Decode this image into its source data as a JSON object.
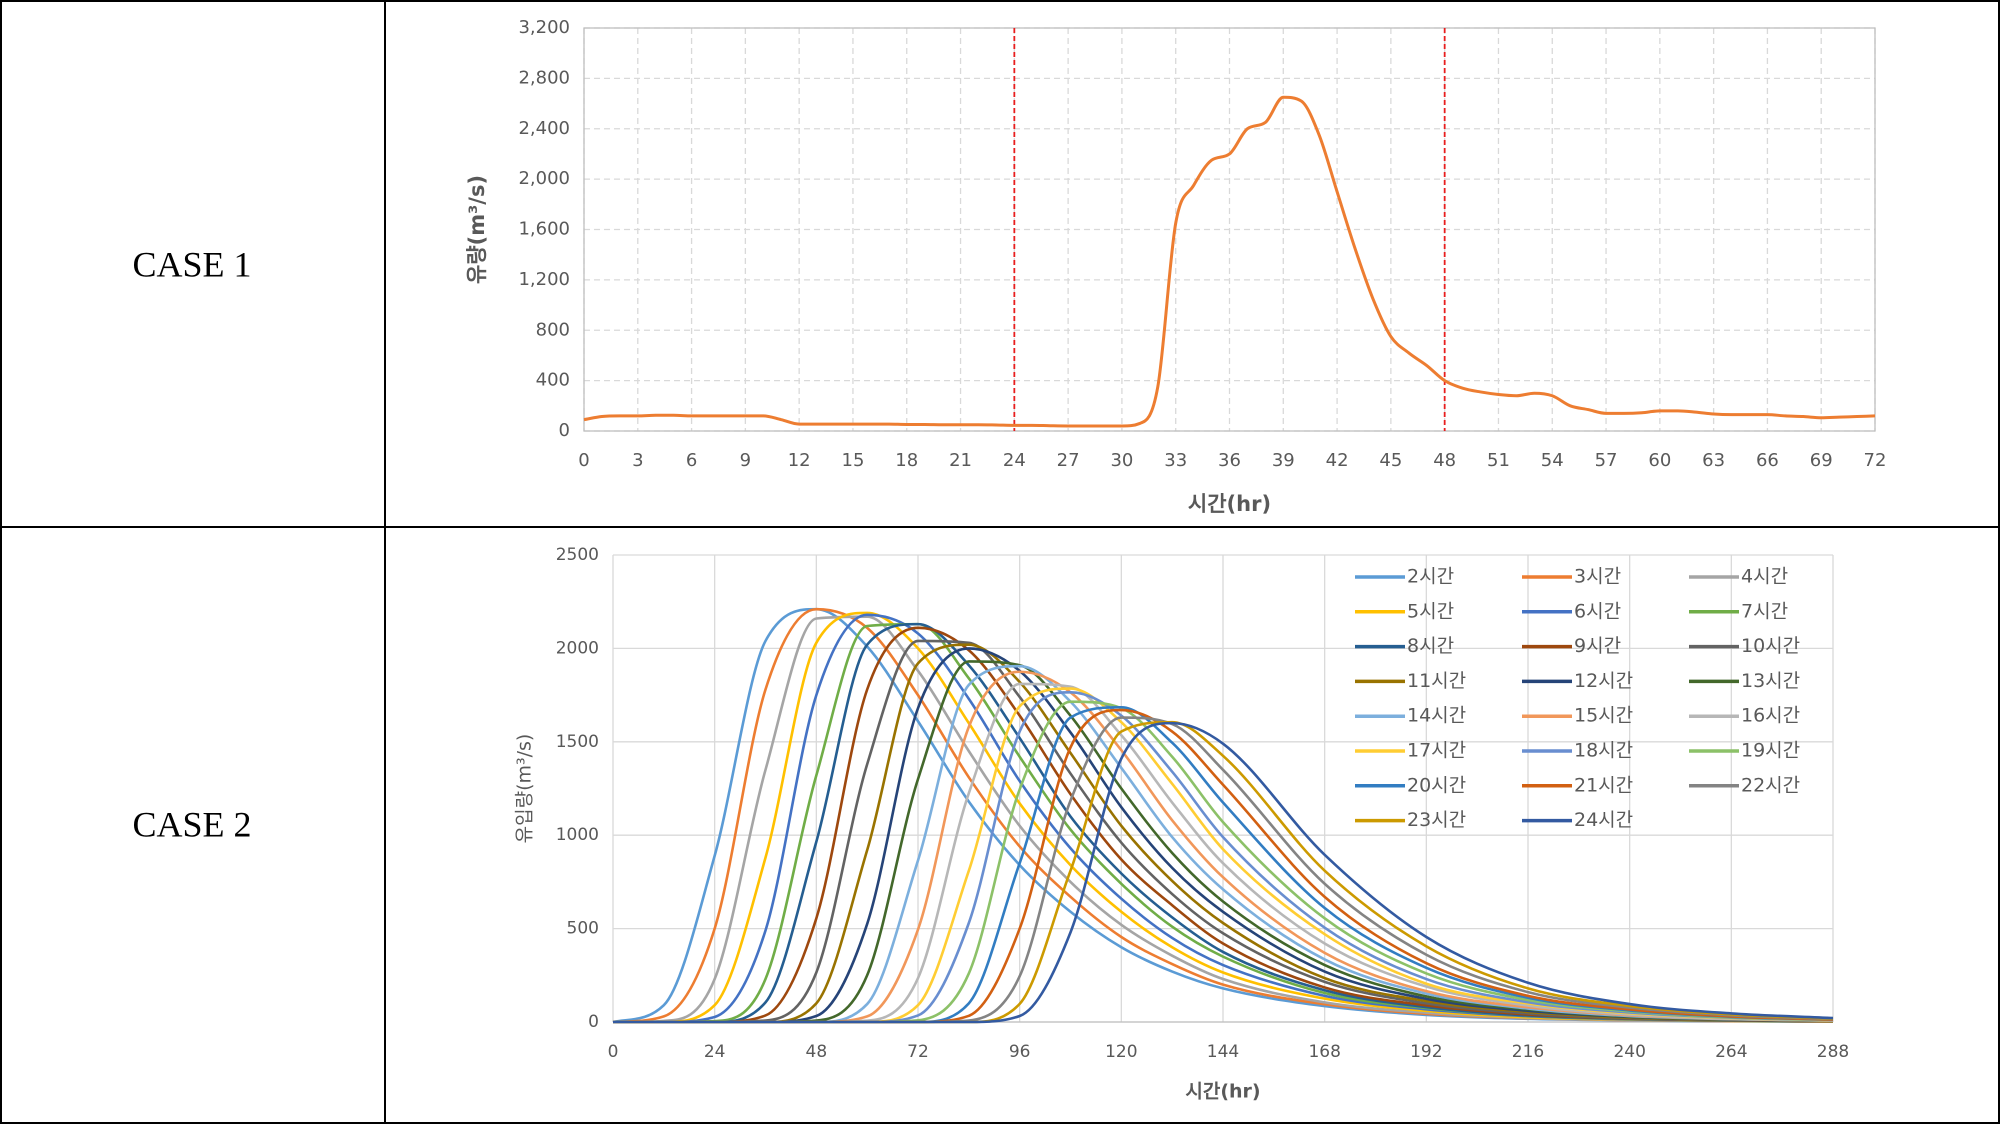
{
  "table": {
    "rows": [
      [
        "CASE 1"
      ],
      [
        "CASE 2"
      ]
    ]
  },
  "chart_data": [
    {
      "type": "line",
      "xlabel": "시간(hr)",
      "ylabel": "유량(m³/s)",
      "color": "#ed7d31",
      "grid": "dashed",
      "vlines": [
        24,
        48
      ],
      "vline_color": "#e81e1e",
      "x": [
        0,
        1,
        2,
        3,
        4,
        5,
        6,
        7,
        8,
        9,
        10,
        11,
        12,
        13,
        14,
        15,
        16,
        17,
        18,
        19,
        20,
        21,
        22,
        23,
        24,
        25,
        26,
        27,
        28,
        29,
        30,
        31,
        32,
        33,
        34,
        35,
        36,
        37,
        38,
        39,
        40,
        41,
        42,
        43,
        44,
        45,
        46,
        47,
        48,
        49,
        50,
        51,
        52,
        53,
        54,
        55,
        56,
        57,
        58,
        59,
        60,
        61,
        62,
        63,
        64,
        65,
        66,
        67,
        68,
        69,
        70,
        71,
        72
      ],
      "values": [
        90,
        115,
        120,
        120,
        125,
        125,
        120,
        120,
        120,
        120,
        120,
        90,
        55,
        55,
        55,
        55,
        55,
        55,
        52,
        52,
        50,
        50,
        50,
        48,
        45,
        45,
        42,
        40,
        40,
        40,
        40,
        60,
        350,
        1650,
        1950,
        2150,
        2200,
        2400,
        2450,
        2650,
        2620,
        2350,
        1900,
        1450,
        1050,
        750,
        620,
        520,
        400,
        340,
        310,
        290,
        280,
        300,
        280,
        200,
        170,
        140,
        140,
        145,
        160,
        160,
        150,
        135,
        130,
        130,
        130,
        120,
        115,
        105,
        110,
        115,
        120
      ],
      "xlim": [
        0,
        72
      ],
      "xticks": [
        0,
        3,
        6,
        9,
        12,
        15,
        18,
        21,
        24,
        27,
        30,
        33,
        36,
        39,
        42,
        45,
        48,
        51,
        54,
        57,
        60,
        63,
        66,
        69,
        72
      ],
      "ylim": [
        0,
        3200
      ],
      "yticks": [
        0,
        400,
        800,
        {
          "value": 1200,
          "label": "1,200"
        },
        {
          "value": 1600,
          "label": "1,600"
        },
        {
          "value": 2000,
          "label": "2,000"
        },
        {
          "value": 2400,
          "label": "2,400"
        },
        {
          "value": 2800,
          "label": "2,800"
        },
        {
          "value": 3200,
          "label": "3,200"
        }
      ]
    },
    {
      "type": "line",
      "xlabel": "시간(hr)",
      "ylabel": "유입량(m³/s)",
      "grid": "solid",
      "legend": "upper-right",
      "x": [
        0,
        12,
        24,
        36,
        48,
        60,
        72,
        84,
        96,
        108,
        120,
        132,
        144,
        168,
        192,
        216,
        240,
        264,
        288
      ],
      "xlim": [
        0,
        288
      ],
      "xticks": [
        0,
        24,
        48,
        72,
        96,
        120,
        144,
        168,
        192,
        216,
        240,
        264,
        288
      ],
      "ylim": [
        0,
        2500
      ],
      "yticks": [
        0,
        500,
        1000,
        1500,
        2000,
        2500
      ],
      "series": [
        {
          "name": "2시간",
          "color": "#5b9bd5",
          "values": [
            0,
            90,
            890,
            2040,
            2210,
            2010,
            1610,
            1180,
            840,
            590,
            400,
            270,
            180,
            85,
            38,
            17,
            9,
            4,
            2
          ]
        },
        {
          "name": "3시간",
          "color": "#ed7d31",
          "values": [
            0,
            30,
            500,
            1780,
            2210,
            2110,
            1750,
            1310,
            940,
            670,
            455,
            310,
            200,
            95,
            44,
            20,
            10,
            5,
            2
          ]
        },
        {
          "name": "4시간",
          "color": "#a5a5a5",
          "values": [
            0,
            6,
            230,
            1350,
            2160,
            2170,
            1880,
            1450,
            1050,
            750,
            520,
            355,
            230,
            105,
            50,
            22,
            11,
            6,
            3
          ]
        },
        {
          "name": "5시간",
          "color": "#ffc000",
          "values": [
            0,
            0,
            90,
            880,
            2030,
            2190,
            2000,
            1600,
            1170,
            840,
            590,
            400,
            265,
            125,
            60,
            25,
            13,
            6,
            3
          ]
        },
        {
          "name": "6시간",
          "color": "#4472c4",
          "values": [
            0,
            0,
            27,
            490,
            1750,
            2180,
            2080,
            1730,
            1290,
            930,
            660,
            450,
            305,
            140,
            68,
            31,
            14,
            7,
            4
          ]
        },
        {
          "name": "7시간",
          "color": "#70ad47",
          "values": [
            0,
            0,
            5,
            230,
            1320,
            2120,
            2130,
            1840,
            1420,
            1030,
            740,
            510,
            350,
            155,
            75,
            34,
            16,
            7,
            4
          ]
        },
        {
          "name": "8시간",
          "color": "#255e91",
          "values": [
            0,
            0,
            0,
            105,
            965,
            2020,
            2130,
            1910,
            1520,
            1100,
            795,
            560,
            375,
            170,
            80,
            35,
            17,
            8,
            4
          ]
        },
        {
          "name": "9시간",
          "color": "#9e480e",
          "values": [
            0,
            0,
            0,
            35,
            555,
            1780,
            2110,
            1990,
            1640,
            1220,
            870,
            625,
            420,
            185,
            89,
            40,
            18,
            9,
            5
          ]
        },
        {
          "name": "10시간",
          "color": "#636363",
          "values": [
            0,
            0,
            0,
            8,
            265,
            1380,
            2040,
            2030,
            1740,
            1330,
            960,
            685,
            475,
            215,
            100,
            46,
            19,
            10,
            5
          ]
        },
        {
          "name": "11시간",
          "color": "#997300",
          "values": [
            0,
            0,
            0,
            0,
            100,
            920,
            1920,
            2020,
            1820,
            1440,
            1050,
            755,
            530,
            235,
            112,
            54,
            23,
            12,
            6
          ]
        },
        {
          "name": "12시간",
          "color": "#264478",
          "values": [
            0,
            0,
            0,
            0,
            32,
            525,
            1680,
            2000,
            1880,
            1550,
            1150,
            825,
            590,
            270,
            124,
            60,
            27,
            13,
            6
          ]
        },
        {
          "name": "13시간",
          "color": "#43682b",
          "values": [
            0,
            0,
            0,
            0,
            8,
            250,
            1300,
            1930,
            1910,
            1640,
            1250,
            905,
            645,
            305,
            137,
            67,
            29,
            14,
            6
          ]
        },
        {
          "name": "14시간",
          "color": "#7cafdd",
          "values": [
            0,
            0,
            0,
            0,
            0,
            96,
            865,
            1805,
            1905,
            1715,
            1360,
            990,
            710,
            335,
            152,
            72,
            32,
            15,
            7
          ]
        },
        {
          "name": "15시간",
          "color": "#f1975a",
          "values": [
            0,
            0,
            0,
            0,
            0,
            30,
            495,
            1580,
            1875,
            1765,
            1455,
            1080,
            775,
            370,
            165,
            79,
            36,
            16,
            8
          ]
        },
        {
          "name": "16시간",
          "color": "#b7b7b7",
          "values": [
            0,
            0,
            0,
            0,
            0,
            7,
            235,
            1225,
            1810,
            1795,
            1535,
            1175,
            850,
            420,
            190,
            88,
            40,
            17,
            9
          ]
        },
        {
          "name": "17시간",
          "color": "#ffcd33",
          "values": [
            0,
            0,
            0,
            0,
            0,
            0,
            90,
            810,
            1690,
            1785,
            1605,
            1275,
            925,
            470,
            205,
            99,
            47,
            21,
            10
          ]
        },
        {
          "name": "18시간",
          "color": "#698ed0",
          "values": [
            0,
            0,
            0,
            0,
            0,
            0,
            35,
            530,
            1555,
            1765,
            1640,
            1340,
            990,
            505,
            230,
            106,
            51,
            23,
            11
          ]
        },
        {
          "name": "19시간",
          "color": "#8cc168",
          "values": [
            0,
            0,
            0,
            0,
            0,
            0,
            9,
            260,
            1245,
            1715,
            1680,
            1420,
            1070,
            555,
            260,
            118,
            57,
            25,
            12
          ]
        },
        {
          "name": "20시간",
          "color": "#327dc2",
          "values": [
            0,
            0,
            0,
            0,
            0,
            0,
            0,
            100,
            850,
            1630,
            1685,
            1495,
            1175,
            610,
            290,
            130,
            62,
            28,
            13
          ]
        },
        {
          "name": "21시간",
          "color": "#d26012",
          "values": [
            0,
            0,
            0,
            0,
            0,
            0,
            0,
            33,
            500,
            1470,
            1670,
            1555,
            1270,
            670,
            315,
            140,
            67,
            30,
            13
          ]
        },
        {
          "name": "22시간",
          "color": "#848484",
          "values": [
            0,
            0,
            0,
            0,
            0,
            0,
            0,
            8,
            245,
            1185,
            1630,
            1595,
            1350,
            740,
            360,
            160,
            77,
            36,
            16
          ]
        },
        {
          "name": "23시간",
          "color": "#cc9a00",
          "values": [
            0,
            0,
            0,
            0,
            0,
            0,
            0,
            0,
            97,
            810,
            1555,
            1605,
            1425,
            810,
            405,
            180,
            86,
            41,
            18
          ]
        },
        {
          "name": "24시간",
          "color": "#335aa1",
          "values": [
            0,
            0,
            0,
            0,
            0,
            0,
            0,
            0,
            32,
            480,
            1410,
            1600,
            1490,
            895,
            455,
            210,
            96,
            46,
            21
          ]
        }
      ]
    }
  ]
}
